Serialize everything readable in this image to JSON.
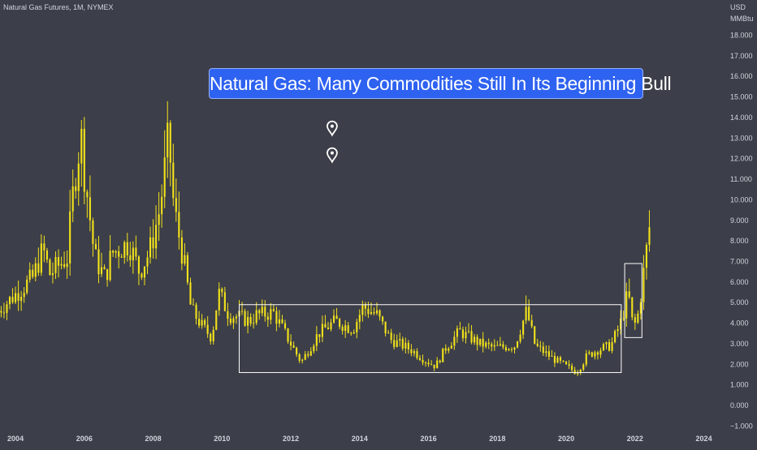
{
  "header": {
    "symbol": "Natural Gas Futures, 1M, NYMEX",
    "currency": "USD",
    "unit": "MMBtu"
  },
  "headline": "Natural Gas: Many Commodities Still In Its Beginning Bull",
  "colors": {
    "background": "#3c3e49",
    "candle": "#f2e21a",
    "text": "#d1d4dc",
    "box": "#ffffff",
    "headline_bg": "#2e62f0"
  },
  "chart_data": {
    "type": "candlestick",
    "title": "Natural Gas Futures, 1M, NYMEX",
    "x_range": [
      2003.55,
      2024.6
    ],
    "y_range": [
      -1.3,
      19.4
    ],
    "y_ticks": [
      -1,
      0,
      1,
      2,
      3,
      4,
      5,
      6,
      7,
      8,
      9,
      10,
      11,
      12,
      13,
      14,
      15,
      16,
      17,
      18
    ],
    "y_tick_labels": [
      "−1.000",
      "0.000",
      "1.000",
      "2.000",
      "3.000",
      "4.000",
      "5.000",
      "6.000",
      "7.000",
      "8.000",
      "9.000",
      "10.000",
      "11.000",
      "12.000",
      "13.000",
      "14.000",
      "15.000",
      "16.000",
      "17.000",
      "18.000"
    ],
    "x_ticks": [
      2004,
      2006,
      2008,
      2010,
      2012,
      2014,
      2016,
      2018,
      2020,
      2022,
      2024
    ],
    "x_tick_labels": [
      "2004",
      "2006",
      "2008",
      "2010",
      "2012",
      "2014",
      "2016",
      "2018",
      "2020",
      "2022",
      "2024"
    ],
    "grid": false,
    "approx_monthly_close": [
      [
        2003.5,
        4.6
      ],
      [
        2004.0,
        5.4
      ],
      [
        2004.5,
        6.2
      ],
      [
        2004.8,
        7.6
      ],
      [
        2005.0,
        6.4
      ],
      [
        2005.5,
        7.2
      ],
      [
        2005.7,
        10.8
      ],
      [
        2005.9,
        13.2
      ],
      [
        2006.0,
        11.4
      ],
      [
        2006.3,
        7.2
      ],
      [
        2006.6,
        6.2
      ],
      [
        2006.8,
        7.4
      ],
      [
        2007.0,
        7.6
      ],
      [
        2007.3,
        7.9
      ],
      [
        2007.6,
        6.5
      ],
      [
        2007.9,
        7.5
      ],
      [
        2008.2,
        9.6
      ],
      [
        2008.45,
        13.1
      ],
      [
        2008.6,
        9.6
      ],
      [
        2008.9,
        6.9
      ],
      [
        2009.1,
        4.7
      ],
      [
        2009.4,
        3.9
      ],
      [
        2009.7,
        3.3
      ],
      [
        2009.9,
        5.5
      ],
      [
        2010.2,
        4.4
      ],
      [
        2010.5,
        4.3
      ],
      [
        2010.8,
        4.1
      ],
      [
        2011.0,
        4.4
      ],
      [
        2011.5,
        4.5
      ],
      [
        2011.9,
        3.3
      ],
      [
        2012.3,
        2.1
      ],
      [
        2012.8,
        3.5
      ],
      [
        2013.3,
        4.1
      ],
      [
        2013.8,
        3.7
      ],
      [
        2014.1,
        4.8
      ],
      [
        2014.5,
        4.4
      ],
      [
        2014.9,
        3.2
      ],
      [
        2015.5,
        2.7
      ],
      [
        2015.9,
        2.2
      ],
      [
        2016.2,
        1.9
      ],
      [
        2016.5,
        2.8
      ],
      [
        2016.9,
        3.6
      ],
      [
        2017.5,
        3.0
      ],
      [
        2017.9,
        2.8
      ],
      [
        2018.5,
        2.9
      ],
      [
        2018.85,
        4.6
      ],
      [
        2019.1,
        2.9
      ],
      [
        2019.6,
        2.3
      ],
      [
        2020.1,
        1.8
      ],
      [
        2020.3,
        1.6
      ],
      [
        2020.6,
        2.4
      ],
      [
        2020.9,
        2.7
      ],
      [
        2021.3,
        2.9
      ],
      [
        2021.6,
        4.1
      ],
      [
        2021.8,
        5.5
      ],
      [
        2021.95,
        3.7
      ],
      [
        2022.1,
        4.5
      ],
      [
        2022.3,
        7.1
      ],
      [
        2022.42,
        8.7
      ]
    ],
    "annotations": [
      {
        "type": "rectangle",
        "x": [
          2010.5,
          2021.6
        ],
        "y": [
          1.6,
          4.9
        ]
      },
      {
        "type": "rectangle",
        "x": [
          2021.7,
          2022.2
        ],
        "y": [
          3.3,
          6.9
        ]
      },
      {
        "type": "marker",
        "x": 2013.2,
        "y": 13.5
      },
      {
        "type": "marker",
        "x": 2013.2,
        "y": 12.2
      }
    ]
  }
}
